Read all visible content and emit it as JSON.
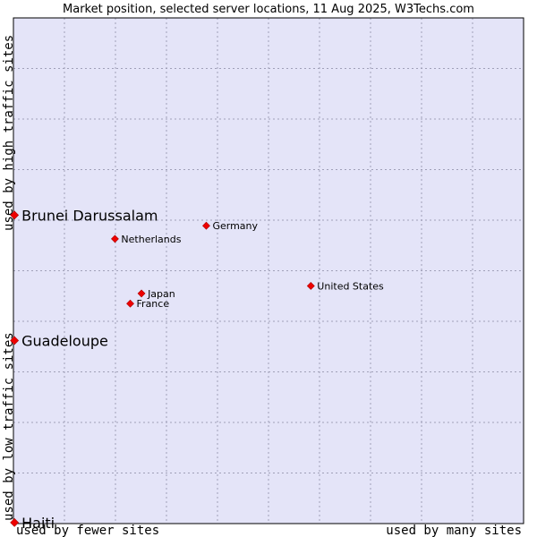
{
  "chart_data": {
    "type": "scatter",
    "title": "Market position, selected server locations, 11 Aug 2025, W3Techs.com",
    "xlabel_low": "used by fewer sites",
    "xlabel_high": "used by many sites",
    "ylabel_low": "used by low traffic sites",
    "ylabel_high": "used by high traffic sites",
    "xlim": [
      0,
      100
    ],
    "ylim": [
      0,
      100
    ],
    "grid": true,
    "colors": {
      "plot_background": "#e4e4f8",
      "grid": "#a0a0b8",
      "marker": "#ee0000",
      "marker_edge": "#aa0000"
    },
    "points": [
      {
        "label": "Brunei Darussalam",
        "x": 0.2,
        "y": 61.0,
        "highlight": true
      },
      {
        "label": "Guadeloupe",
        "x": 0.2,
        "y": 36.2,
        "highlight": true
      },
      {
        "label": "Haiti",
        "x": 0.2,
        "y": 0.2,
        "highlight": true
      },
      {
        "label": "Germany",
        "x": 37.8,
        "y": 58.9,
        "highlight": false
      },
      {
        "label": "Netherlands",
        "x": 19.9,
        "y": 56.3,
        "highlight": false
      },
      {
        "label": "United States",
        "x": 58.3,
        "y": 47.0,
        "highlight": false
      },
      {
        "label": "Japan",
        "x": 25.1,
        "y": 45.5,
        "highlight": false
      },
      {
        "label": "France",
        "x": 22.9,
        "y": 43.5,
        "highlight": false
      }
    ]
  }
}
